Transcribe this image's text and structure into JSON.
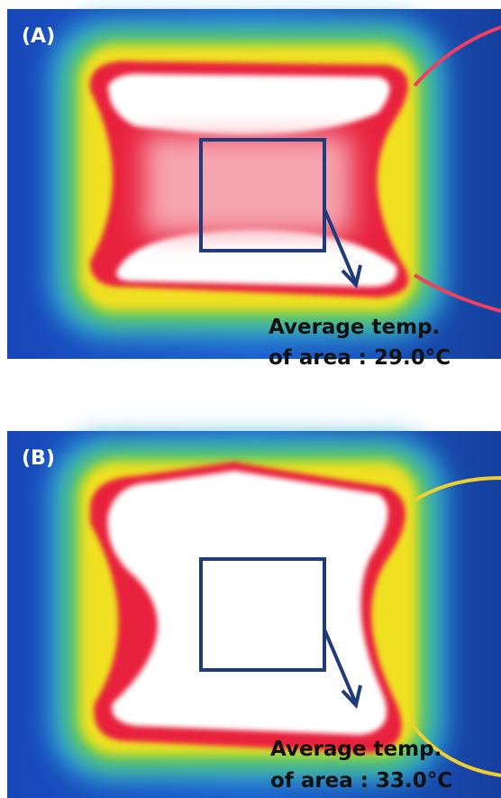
{
  "panels": [
    {
      "label": "(A)",
      "caption_line1": "Average temp.",
      "caption_line2": "of area : 29.0°C"
    },
    {
      "label": "(B)",
      "caption_line1": "Average temp.",
      "caption_line2": "of area : 33.0°C"
    }
  ]
}
